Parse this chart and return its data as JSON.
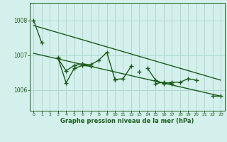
{
  "title": "Graphe pression niveau de la mer (hPa)",
  "bg_color": "#d4f0ec",
  "grid_color": "#b0d8d0",
  "line_color": "#1a5c1a",
  "xlim": [
    -0.5,
    23.5
  ],
  "ylim": [
    1005.4,
    1008.5
  ],
  "yticks": [
    1006,
    1007,
    1008
  ],
  "xticks": [
    0,
    1,
    2,
    3,
    4,
    5,
    6,
    7,
    8,
    9,
    10,
    11,
    12,
    13,
    14,
    15,
    16,
    17,
    18,
    19,
    20,
    21,
    22,
    23
  ],
  "series1": [
    1008.0,
    1007.35,
    null,
    1006.9,
    1006.55,
    1006.7,
    1006.75,
    1006.72,
    1006.85,
    1007.08,
    1006.3,
    1006.32,
    1006.68,
    null,
    1006.62,
    1006.28,
    1006.18,
    1006.22,
    1006.22,
    1006.32,
    1006.28,
    null,
    1005.82,
    1005.82
  ],
  "series2": [
    null,
    null,
    null,
    1006.92,
    1006.2,
    1006.62,
    1006.7,
    1006.68,
    null,
    null,
    1006.3,
    null,
    null,
    1006.52,
    null,
    1006.18,
    1006.22,
    1006.18,
    null,
    null,
    null,
    null,
    null,
    null
  ],
  "trend1_x": [
    0,
    23
  ],
  "trend1_y": [
    1007.85,
    1006.28
  ],
  "trend2_x": [
    0,
    23
  ],
  "trend2_y": [
    1007.05,
    1005.82
  ],
  "marker_size": 4
}
